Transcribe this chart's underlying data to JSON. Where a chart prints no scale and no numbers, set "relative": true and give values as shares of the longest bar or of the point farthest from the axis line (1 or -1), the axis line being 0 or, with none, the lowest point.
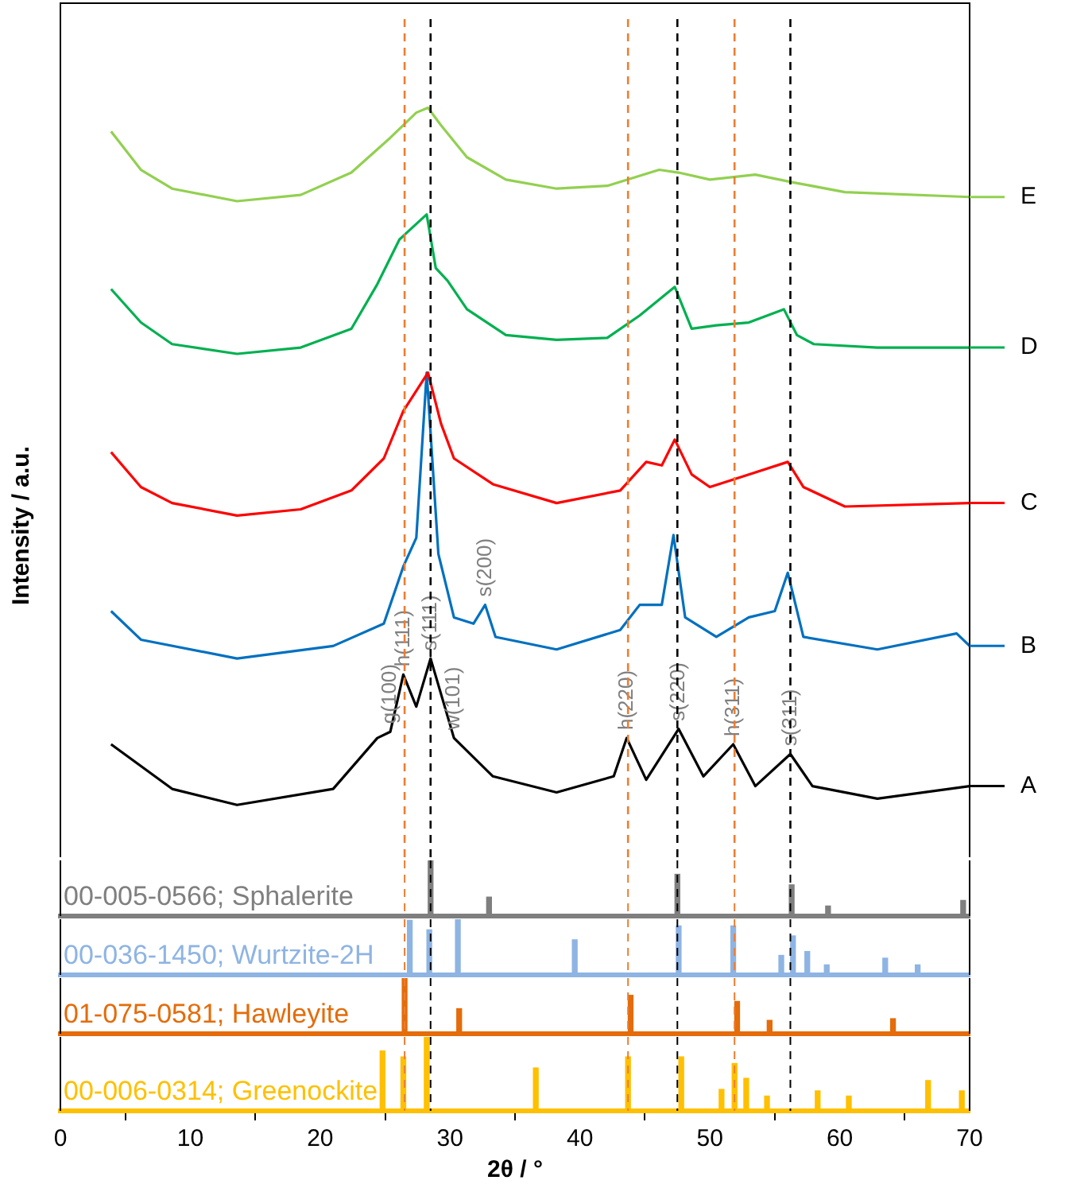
{
  "chart_data": [
    {
      "type": "line",
      "ylabel": "Intensity / a.u.",
      "relative": true,
      "xlim": [
        0,
        70
      ],
      "xticks": [
        0,
        10,
        20,
        30,
        40,
        50,
        60,
        70
      ],
      "tick_labels": false,
      "legend": "right",
      "marker": "none",
      "line_style": "solid",
      "series": [
        {
          "name": "E",
          "color": "#92d050",
          "x": [
            3.9,
            6.2,
            8.6,
            13.6,
            18.5,
            22.4,
            25.4,
            27.4,
            28.3,
            29.3,
            31.3,
            34.3,
            38.2,
            42.1,
            46.1,
            47.6,
            50.0,
            53.5,
            56.4,
            60.4,
            70
          ],
          "values": [
            0.966,
            0.911,
            0.884,
            0.866,
            0.875,
            0.907,
            0.957,
            0.993,
            1,
            0.975,
            0.929,
            0.897,
            0.884,
            0.888,
            0.911,
            0.907,
            0.897,
            0.904,
            0.893,
            0.879,
            0.872
          ]
        },
        {
          "name": "D",
          "color": "#00b050",
          "x": [
            3.9,
            6.2,
            8.6,
            13.6,
            18.5,
            22.4,
            24.4,
            26.1,
            28.2,
            28.9,
            29.8,
            31.3,
            34.3,
            38.2,
            42.1,
            44.6,
            47.3,
            48.6,
            50.5,
            53.0,
            55.7,
            56.7,
            58.0,
            62.9,
            70
          ],
          "values": [
            0.74,
            0.692,
            0.661,
            0.647,
            0.656,
            0.683,
            0.747,
            0.811,
            0.847,
            0.77,
            0.752,
            0.711,
            0.674,
            0.667,
            0.67,
            0.702,
            0.743,
            0.683,
            0.688,
            0.692,
            0.711,
            0.674,
            0.661,
            0.656,
            0.656
          ]
        },
        {
          "name": "C",
          "color": "#ff0000",
          "x": [
            3.9,
            6.2,
            8.6,
            13.6,
            18.5,
            22.4,
            24.9,
            26.4,
            28.3,
            29.3,
            30.3,
            33.3,
            38.2,
            43.1,
            45.1,
            46.3,
            47.3,
            48.6,
            50.0,
            53.0,
            56.0,
            57.2,
            60.4,
            70
          ],
          "values": [
            0.506,
            0.456,
            0.433,
            0.415,
            0.424,
            0.451,
            0.497,
            0.565,
            0.62,
            0.547,
            0.497,
            0.46,
            0.433,
            0.451,
            0.492,
            0.487,
            0.524,
            0.474,
            0.456,
            0.474,
            0.492,
            0.456,
            0.428,
            0.433
          ]
        },
        {
          "name": "B",
          "color": "#0070c0",
          "x": [
            3.9,
            6.2,
            13.6,
            21.0,
            24.9,
            26.4,
            27.4,
            28.2,
            29.1,
            30.3,
            31.8,
            32.7,
            33.5,
            38.2,
            43.1,
            44.6,
            46.3,
            47.2,
            48.1,
            50.5,
            53.0,
            55.0,
            56.0,
            57.2,
            62.9,
            69.0,
            70
          ],
          "values": [
            0.278,
            0.237,
            0.21,
            0.228,
            0.26,
            0.342,
            0.383,
            0.62,
            0.36,
            0.269,
            0.26,
            0.287,
            0.241,
            0.223,
            0.251,
            0.287,
            0.287,
            0.387,
            0.269,
            0.241,
            0.269,
            0.278,
            0.333,
            0.241,
            0.223,
            0.246,
            0.228
          ]
        },
        {
          "name": "A",
          "color": "#000000",
          "x": [
            3.9,
            8.6,
            13.6,
            21.0,
            24.4,
            25.4,
            26.4,
            27.4,
            28.5,
            30.3,
            33.3,
            38.2,
            42.6,
            43.6,
            45.1,
            47.6,
            49.5,
            51.8,
            53.5,
            56.2,
            57.9,
            62.9,
            70
          ],
          "values": [
            0.087,
            0.023,
            0,
            0.023,
            0.096,
            0.105,
            0.187,
            0.141,
            0.21,
            0.096,
            0.041,
            0.018,
            0.041,
            0.096,
            0.036,
            0.109,
            0.041,
            0.087,
            0.027,
            0.073,
            0.027,
            0.009,
            0.027
          ]
        }
      ],
      "ref_lines": [
        {
          "axis": "x",
          "value": 26.5,
          "color": "#ed7d31",
          "line_style": "dashed"
        },
        {
          "axis": "x",
          "value": 43.7,
          "color": "#ed7d31",
          "line_style": "dashed"
        },
        {
          "axis": "x",
          "value": 51.9,
          "color": "#ed7d31",
          "line_style": "dashed"
        },
        {
          "axis": "x",
          "value": 28.5,
          "color": "#000000",
          "line_style": "dashed"
        },
        {
          "axis": "x",
          "value": 47.5,
          "color": "#000000",
          "line_style": "dashed"
        },
        {
          "axis": "x",
          "value": 56.2,
          "color": "#000000",
          "line_style": "dashed"
        }
      ],
      "annotations": [
        {
          "text": "g(100)",
          "x": 25.4,
          "y": 0.105
        },
        {
          "text": "h(111)",
          "x": 26.4,
          "y": 0.187
        },
        {
          "text": "s(111)",
          "x": 28.5,
          "y": 0.21
        },
        {
          "text": "w(101)",
          "x": 30.3,
          "y": 0.096
        },
        {
          "text": "s(200)",
          "x": 32.7,
          "y": 0.287
        },
        {
          "text": "h(220)",
          "x": 43.6,
          "y": 0.096
        },
        {
          "text": "s(220)",
          "x": 47.6,
          "y": 0.109
        },
        {
          "text": "h(311)",
          "x": 51.8,
          "y": 0.087
        },
        {
          "text": "s(311)",
          "x": 56.2,
          "y": 0.073
        }
      ]
    },
    {
      "type": "bar",
      "relative": true,
      "xlim": [
        0,
        70
      ],
      "tick_labels": false,
      "series": [
        {
          "name": "00-005-0566; Sphalerite",
          "color": "#7f7f7f",
          "x": [
            28.5,
            33.0,
            47.5,
            56.3,
            59.1,
            69.5
          ],
          "values": [
            1,
            0.34,
            0.75,
            0.56,
            0.18,
            0.28
          ]
        }
      ],
      "ref_lines": [
        {
          "axis": "x",
          "value": 26.5,
          "color": "#ed7d31",
          "line_style": "dashed"
        },
        {
          "axis": "x",
          "value": 43.7,
          "color": "#ed7d31",
          "line_style": "dashed"
        },
        {
          "axis": "x",
          "value": 51.9,
          "color": "#ed7d31",
          "line_style": "dashed"
        },
        {
          "axis": "x",
          "value": 28.5,
          "color": "#000000",
          "line_style": "dashed"
        },
        {
          "axis": "x",
          "value": 47.5,
          "color": "#000000",
          "line_style": "dashed"
        },
        {
          "axis": "x",
          "value": 56.2,
          "color": "#000000",
          "line_style": "dashed"
        }
      ]
    },
    {
      "type": "bar",
      "relative": true,
      "xlim": [
        0,
        70
      ],
      "tick_labels": false,
      "series": [
        {
          "name": "00-036-1450; Wurtzite-2H",
          "color": "#8eb4e3",
          "x": [
            26.9,
            28.4,
            30.6,
            39.6,
            47.6,
            51.8,
            55.5,
            56.4,
            57.5,
            59.0,
            63.5,
            66.0
          ],
          "values": [
            0.98,
            0.81,
            1,
            0.63,
            0.88,
            0.88,
            0.35,
            0.7,
            0.42,
            0.18,
            0.3,
            0.18
          ]
        }
      ],
      "ref_lines": [
        {
          "axis": "x",
          "value": 26.5,
          "color": "#ed7d31",
          "line_style": "dashed"
        },
        {
          "axis": "x",
          "value": 43.7,
          "color": "#ed7d31",
          "line_style": "dashed"
        },
        {
          "axis": "x",
          "value": 51.9,
          "color": "#ed7d31",
          "line_style": "dashed"
        },
        {
          "axis": "x",
          "value": 28.5,
          "color": "#000000",
          "line_style": "dashed"
        },
        {
          "axis": "x",
          "value": 47.5,
          "color": "#000000",
          "line_style": "dashed"
        },
        {
          "axis": "x",
          "value": 56.2,
          "color": "#000000",
          "line_style": "dashed"
        }
      ]
    },
    {
      "type": "bar",
      "relative": true,
      "xlim": [
        0,
        70
      ],
      "tick_labels": false,
      "series": [
        {
          "name": "01-075-0581; Hawleyite",
          "color": "#e46c0a",
          "x": [
            26.5,
            30.7,
            43.9,
            52.1,
            54.6,
            64.1
          ],
          "values": [
            1,
            0.45,
            0.69,
            0.58,
            0.24,
            0.27
          ]
        }
      ],
      "ref_lines": [
        {
          "axis": "x",
          "value": 26.5,
          "color": "#ed7d31",
          "line_style": "dashed"
        },
        {
          "axis": "x",
          "value": 43.7,
          "color": "#ed7d31",
          "line_style": "dashed"
        },
        {
          "axis": "x",
          "value": 51.9,
          "color": "#ed7d31",
          "line_style": "dashed"
        },
        {
          "axis": "x",
          "value": 28.5,
          "color": "#000000",
          "line_style": "dashed"
        },
        {
          "axis": "x",
          "value": 47.5,
          "color": "#000000",
          "line_style": "dashed"
        },
        {
          "axis": "x",
          "value": 56.2,
          "color": "#000000",
          "line_style": "dashed"
        }
      ]
    },
    {
      "type": "bar",
      "relative": true,
      "xlabel": "2θ / °",
      "xlim": [
        0,
        70
      ],
      "xticks": [
        0,
        10,
        20,
        30,
        40,
        50,
        60,
        70
      ],
      "tick_labels": "x",
      "series": [
        {
          "name": "00-006-0314; Greenockite",
          "color": "#ffc000",
          "x": [
            24.8,
            26.4,
            28.2,
            36.6,
            43.7,
            47.8,
            50.9,
            51.9,
            52.8,
            54.4,
            58.3,
            60.7,
            66.8,
            69.4
          ],
          "values": [
            0.81,
            0.73,
            1,
            0.58,
            0.73,
            0.73,
            0.29,
            0.64,
            0.44,
            0.2,
            0.27,
            0.2,
            0.41,
            0.27
          ]
        }
      ],
      "ref_lines": [
        {
          "axis": "x",
          "value": 26.5,
          "color": "#ed7d31",
          "line_style": "dashed"
        },
        {
          "axis": "x",
          "value": 43.7,
          "color": "#ed7d31",
          "line_style": "dashed"
        },
        {
          "axis": "x",
          "value": 51.9,
          "color": "#ed7d31",
          "line_style": "dashed"
        },
        {
          "axis": "x",
          "value": 28.5,
          "color": "#000000",
          "line_style": "dashed"
        },
        {
          "axis": "x",
          "value": 47.5,
          "color": "#000000",
          "line_style": "dashed"
        },
        {
          "axis": "x",
          "value": 56.2,
          "color": "#000000",
          "line_style": "dashed"
        }
      ]
    }
  ]
}
